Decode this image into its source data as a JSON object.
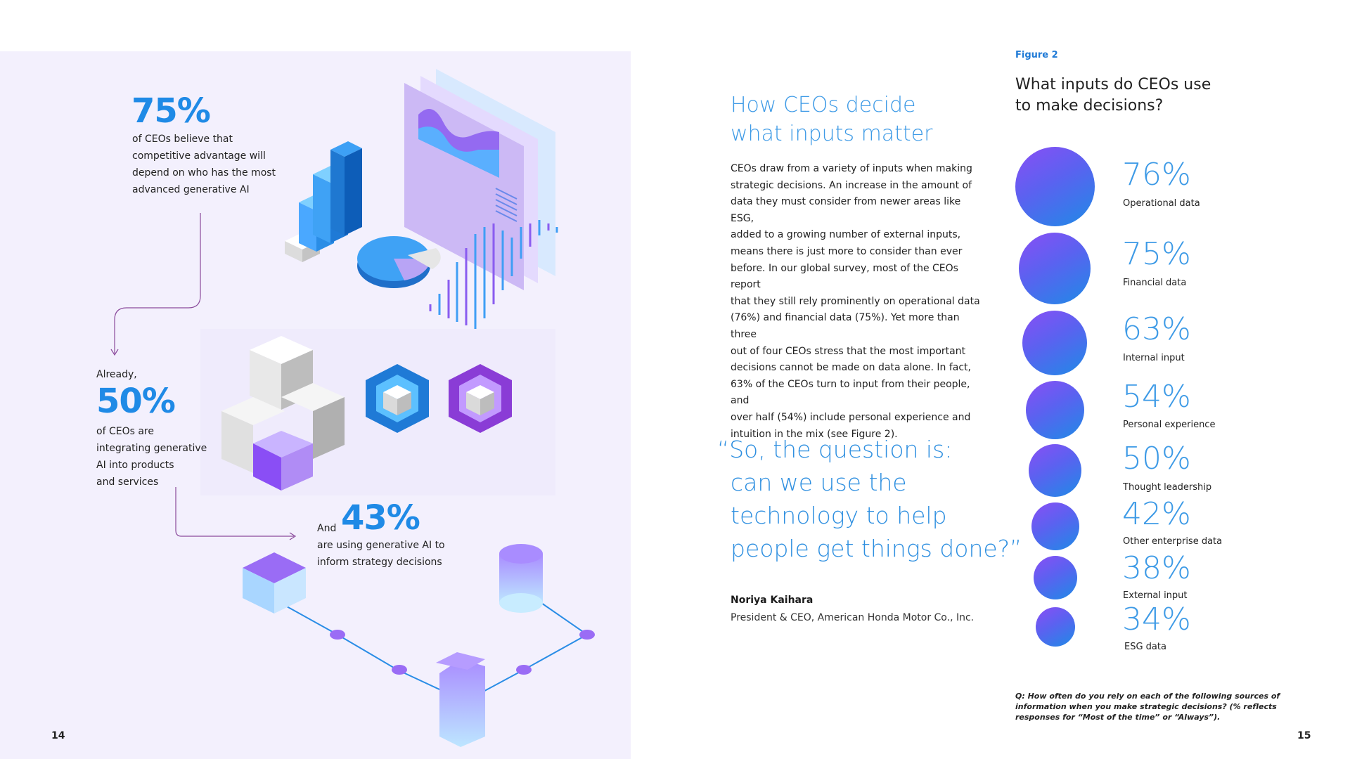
{
  "left": {
    "stat1": {
      "value": "75%",
      "text": [
        "of CEOs believe that",
        "competitive advantage will",
        "depend on who has the most",
        "advanced generative AI"
      ]
    },
    "stat2": {
      "prefix": "Already,",
      "value": "50%",
      "text": [
        "of CEOs are",
        "integrating generative",
        "AI into products",
        "and services"
      ]
    },
    "stat3": {
      "prefix": "And",
      "value": "43%",
      "text": [
        "are using generative AI to",
        "inform strategy decisions"
      ]
    },
    "page_number": "14"
  },
  "article": {
    "heading": [
      "How CEOs decide",
      "what inputs matter"
    ],
    "body": [
      "CEOs draw from a variety of inputs when making",
      "strategic decisions. An increase in the amount of",
      "data they must consider from newer areas like ESG,",
      "added to a growing number of external inputs,",
      "means there is just more to consider than ever",
      "before. In our global survey, most of  the CEOs report",
      "that they still rely prominently on operational data",
      "(76%) and financial data (75%). Yet more than three",
      "out of four CEOs stress that the most important",
      "decisions cannot be made on data alone. In fact,",
      "63% of the CEOs turn to input from their people, and",
      "over half (54%) include personal experience and",
      "intuition in the mix (see Figure 2)."
    ],
    "quote": [
      "“So, the question is:",
      "can we use the",
      "technology to help",
      "people get things done?”"
    ],
    "attribution_name": "Noriya Kaihara",
    "attribution_title": "President & CEO, American Honda Motor Co., Inc.",
    "page_number": "15"
  },
  "figure": {
    "label": "Figure 2",
    "title": [
      "What inputs do CEOs use",
      "to make decisions?"
    ],
    "footnote": [
      "Q: How often do you rely on each of the following sources of",
      "information when you make strategic decisions? (% reflects",
      "responses for “Most of the time” or “Always”)."
    ],
    "items": [
      {
        "pct": "76%",
        "label": "Operational data",
        "value": 76
      },
      {
        "pct": "75%",
        "label": "Financial data",
        "value": 75
      },
      {
        "pct": "63%",
        "label": "Internal input",
        "value": 63
      },
      {
        "pct": "54%",
        "label": "Personal experience",
        "value": 54
      },
      {
        "pct": "50%",
        "label": "Thought leadership",
        "value": 50
      },
      {
        "pct": "42%",
        "label": "Other enterprise data",
        "value": 42
      },
      {
        "pct": "38%",
        "label": "External input",
        "value": 38
      },
      {
        "pct": "34%",
        "label": "ESG data",
        "value": 34
      }
    ]
  },
  "colors": {
    "accent": "#1f8ae6",
    "bubble_top": "#8a4ef5",
    "panel_bg": "#f3f0fd"
  }
}
